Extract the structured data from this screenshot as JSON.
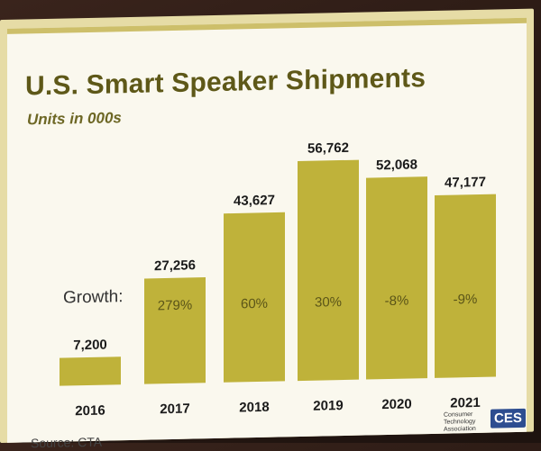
{
  "slide": {
    "title": "U.S. Smart Speaker Shipments",
    "subtitle": "Units in 000s",
    "growth_label": "Growth:",
    "source": "Source: CTA",
    "logo_text": "Consumer Technology Association",
    "logo_badge": "CES"
  },
  "colors": {
    "bar": "#bfb23a",
    "title": "#5e5818",
    "frame": "#e6dca6"
  },
  "chart_data": {
    "type": "bar",
    "title": "U.S. Smart Speaker Shipments",
    "subtitle": "Units in 000s",
    "categories": [
      "2016",
      "2017",
      "2018",
      "2019",
      "2020",
      "2021"
    ],
    "values": [
      7200,
      27256,
      43627,
      56762,
      52068,
      47177
    ],
    "value_labels": [
      "7,200",
      "27,256",
      "43,627",
      "56,762",
      "52,068",
      "47,177"
    ],
    "growth_labels": [
      "",
      "279%",
      "60%",
      "30%",
      "-8%",
      "-9%"
    ],
    "xlabel": "",
    "ylabel": "",
    "ylim": [
      0,
      60000
    ],
    "grid": false,
    "legend": "none"
  }
}
